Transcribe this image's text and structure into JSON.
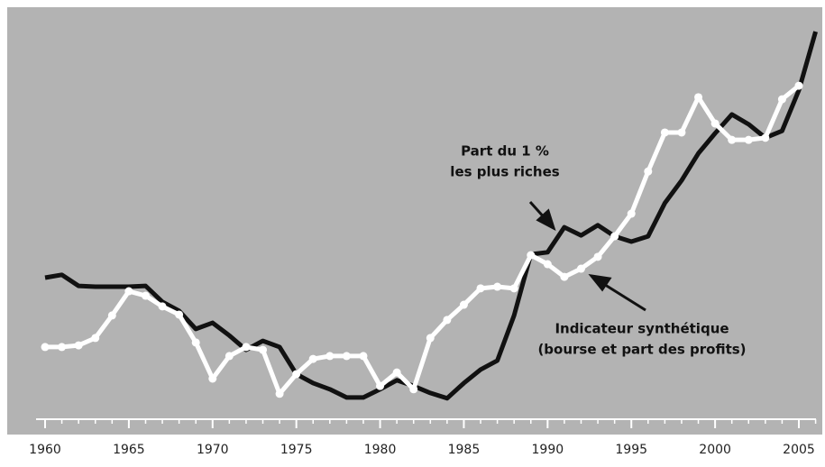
{
  "chart_data": {
    "type": "line",
    "x": [
      1960,
      1961,
      1962,
      1963,
      1964,
      1965,
      1966,
      1967,
      1968,
      1969,
      1970,
      1971,
      1972,
      1973,
      1974,
      1975,
      1976,
      1977,
      1978,
      1979,
      1980,
      1981,
      1982,
      1983,
      1984,
      1985,
      1986,
      1987,
      1988,
      1989,
      1990,
      1991,
      1992,
      1993,
      1994,
      1995,
      1996,
      1997,
      1998,
      1999,
      2000,
      2001,
      2002,
      2003,
      2004,
      2005,
      2006
    ],
    "series": [
      {
        "color": "#111111",
        "values": [
          34.5,
          35.2,
          32.5,
          32.3,
          32.3,
          32.3,
          32.5,
          28.6,
          26.4,
          22,
          23.5,
          20.4,
          16.9,
          19.1,
          17.6,
          11,
          8.8,
          7.3,
          5.3,
          5.3,
          7.3,
          9.5,
          8.1,
          6.4,
          5.1,
          8.8,
          12.1,
          14.3,
          25.3,
          40.2,
          40.7,
          46.8,
          44.8,
          47.3,
          44.6,
          43.3,
          44.6,
          52.7,
          58.2,
          64.8,
          69.7,
          74.3,
          71.9,
          68.6,
          70.3,
          80.2,
          94.5
        ]
      },
      {
        "color": "#ffffff",
        "markers": true,
        "values": [
          17.6,
          17.6,
          18,
          19.8,
          25.3,
          31.2,
          30.1,
          27.5,
          25.5,
          18.7,
          9.9,
          15.4,
          17.6,
          16.9,
          6.2,
          11,
          14.7,
          15.4,
          15.4,
          15.4,
          8.1,
          11.4,
          7.3,
          19.8,
          24.2,
          27.9,
          31.9,
          32.3,
          31.9,
          40,
          37.8,
          34.7,
          36.7,
          39.6,
          44.6,
          50.1,
          60.4,
          69.9,
          69.9,
          78.5,
          72.1,
          68.1,
          68.1,
          68.6,
          78,
          81.3,
          null
        ]
      }
    ],
    "annotations": [
      {
        "lines": [
          "Part du 1 %",
          "les plus riches"
        ]
      },
      {
        "lines": [
          "Indicateur synthétique",
          "(bourse et part des profits)"
        ]
      }
    ],
    "xlim": [
      1960,
      2005
    ],
    "xticks": [
      1960,
      1965,
      1970,
      1975,
      1980,
      1985,
      1990,
      1995,
      2000,
      2005
    ],
    "ylim": [
      0,
      100
    ]
  }
}
